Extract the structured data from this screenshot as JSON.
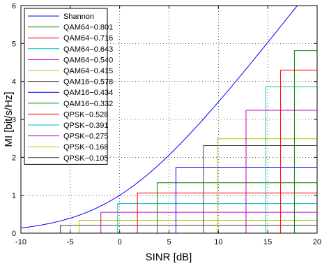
{
  "chart_data": {
    "type": "line",
    "xlabel": "SINR [dB]",
    "ylabel": "MI [bit/s/Hz]",
    "xlim": [
      -10,
      20
    ],
    "ylim": [
      0,
      6
    ],
    "xticks": [
      -10,
      -5,
      0,
      5,
      10,
      15,
      20
    ],
    "yticks": [
      0,
      1,
      2,
      3,
      4,
      5,
      6
    ],
    "grid": true,
    "grid_style": "dotted",
    "legend_position": "top-left",
    "shannon": {
      "name": "Shannon",
      "color": "#0000ff",
      "formula": "log2(1 + 10^(SINR/10))"
    },
    "series": [
      {
        "name": "QAM64−0.801",
        "color": "#008000",
        "step_x": 17.7,
        "level": 4.81
      },
      {
        "name": "QAM64−0.716",
        "color": "#ff0000",
        "step_x": 16.3,
        "level": 4.3
      },
      {
        "name": "QAM64−0.643",
        "color": "#00bfbf",
        "step_x": 14.8,
        "level": 3.86
      },
      {
        "name": "QAM64−0.540",
        "color": "#bf00bf",
        "step_x": 12.8,
        "level": 3.24
      },
      {
        "name": "QAM64−0.415",
        "color": "#bfbf00",
        "step_x": 9.9,
        "level": 2.49
      },
      {
        "name": "QAM16−0.578",
        "color": "#404040",
        "step_x": 8.5,
        "level": 2.31
      },
      {
        "name": "QAM16−0.434",
        "color": "#0000ff",
        "step_x": 5.7,
        "level": 1.74
      },
      {
        "name": "QAM16−0.332",
        "color": "#008000",
        "step_x": 3.8,
        "level": 1.33
      },
      {
        "name": "QPSK−0.528",
        "color": "#ff0000",
        "step_x": 1.8,
        "level": 1.06
      },
      {
        "name": "QPSK−0.391",
        "color": "#00bfbf",
        "step_x": -0.2,
        "level": 0.78
      },
      {
        "name": "QPSK−0.275",
        "color": "#bf00bf",
        "step_x": -1.9,
        "level": 0.55
      },
      {
        "name": "QPSK−0.168",
        "color": "#bfbf00",
        "step_x": -4.1,
        "level": 0.34
      },
      {
        "name": "QPSK−0.105",
        "color": "#404040",
        "step_x": -6.0,
        "level": 0.21
      }
    ]
  }
}
